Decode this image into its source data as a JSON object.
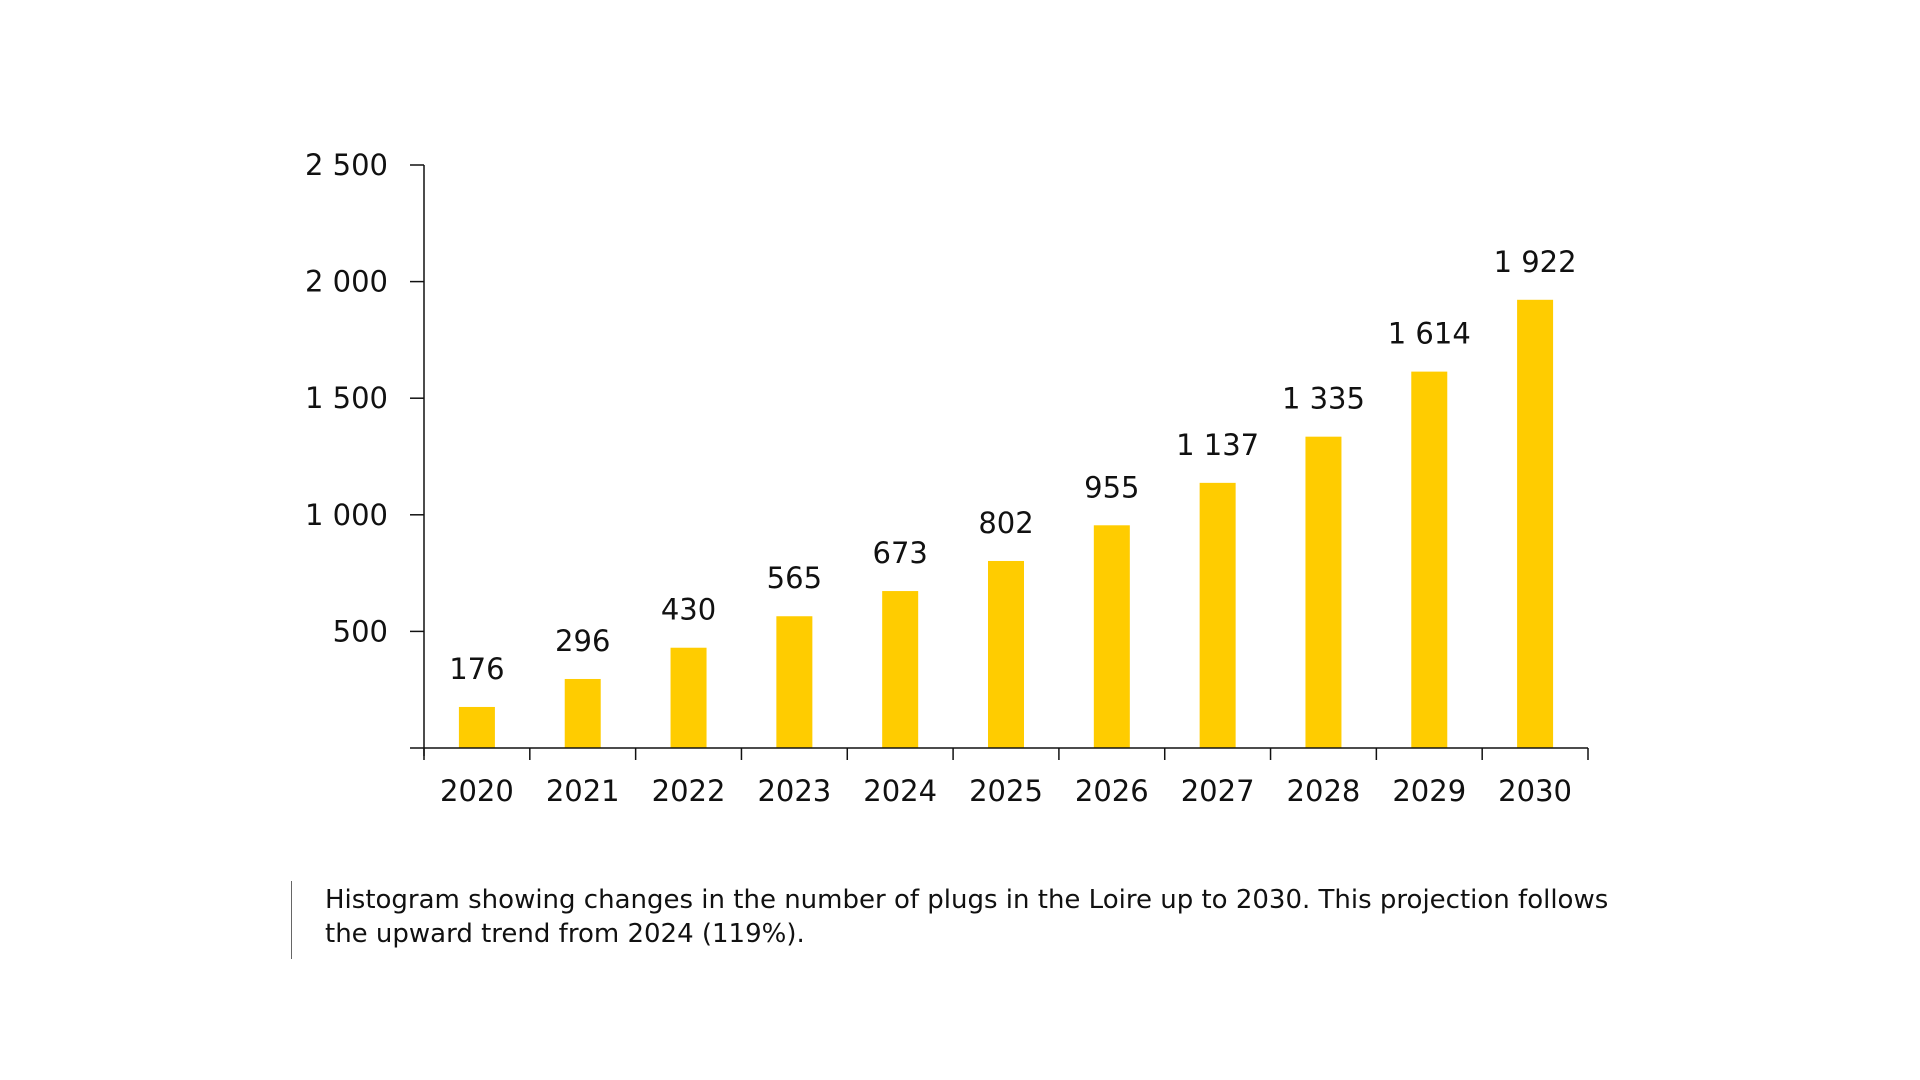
{
  "chart_data": {
    "type": "bar",
    "categories": [
      "2020",
      "2021",
      "2022",
      "2023",
      "2024",
      "2025",
      "2026",
      "2027",
      "2028",
      "2029",
      "2030"
    ],
    "values": [
      176,
      296,
      430,
      565,
      673,
      802,
      955,
      1137,
      1335,
      1614,
      1922
    ],
    "value_labels": [
      "176",
      "296",
      "430",
      "565",
      "673",
      "802",
      "955",
      "1 137",
      "1 335",
      "1 614",
      "1 922"
    ],
    "yticks": [
      500,
      1000,
      1500,
      2000,
      2500
    ],
    "ytick_labels": [
      "500",
      "1 000",
      "1 500",
      "2 000",
      "2 500"
    ],
    "ylim": [
      0,
      2500
    ],
    "bar_color": "#FFCC00",
    "axis_color": "#111111",
    "grid": false,
    "legend": "none"
  },
  "caption": "Histogram showing changes in the number of plugs in the Loire up to 2030. This projection follows the upward trend from 2024 (119%)."
}
